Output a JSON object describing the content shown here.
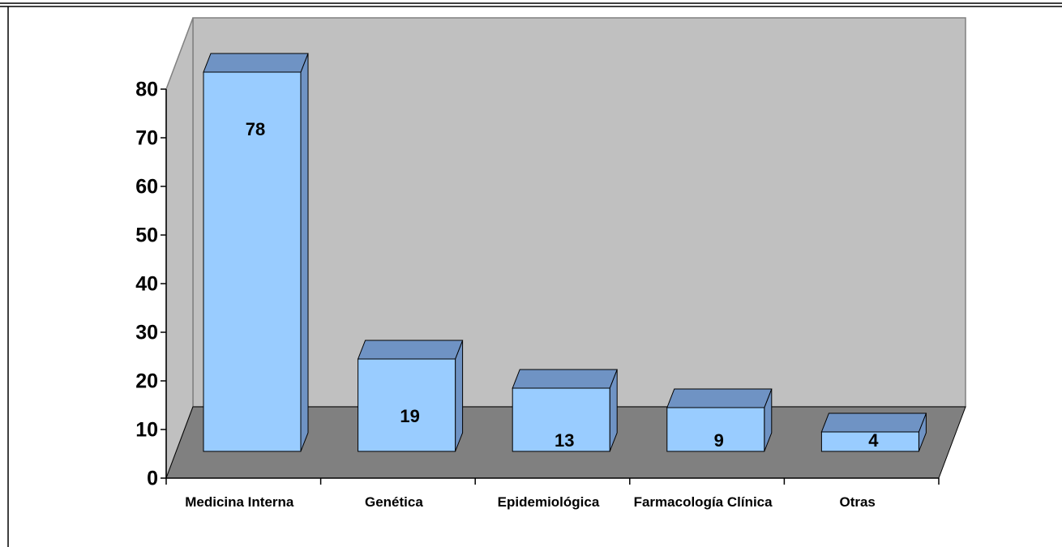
{
  "chart_data": {
    "type": "bar3d",
    "categories": [
      "Medicina Interna",
      "Genética",
      "Epidemiológica",
      "Farmacología Clínica",
      "Otras"
    ],
    "values": [
      78,
      19,
      13,
      9,
      4
    ],
    "color": "#99ccff",
    "shade_color": "#6f93c4",
    "wall_color": "#c0c0c0",
    "floor_color": "#808080",
    "ylim": [
      0,
      80
    ],
    "yticks": [
      0,
      10,
      20,
      30,
      40,
      50,
      60,
      70,
      80
    ]
  }
}
